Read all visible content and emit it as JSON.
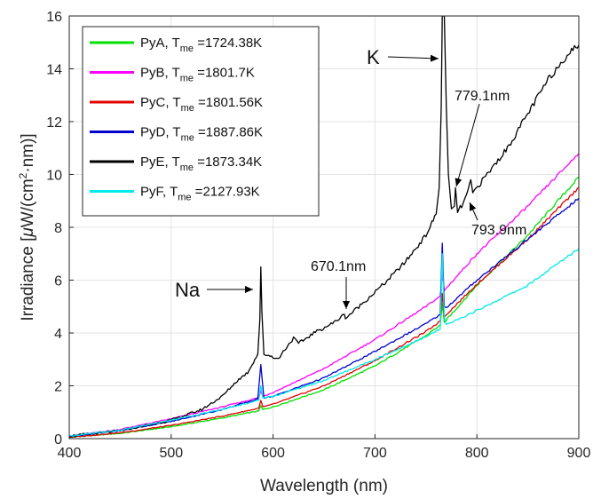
{
  "chart_data": {
    "type": "line",
    "xlabel": "Wavelength (nm)",
    "ylabel_parts": {
      "pre": "Irradiance [",
      "mu": "μ",
      "mid": "W/(cm",
      "sup": "2",
      "post": "·nm)]"
    },
    "xlim": [
      400,
      900
    ],
    "ylim": [
      0,
      16
    ],
    "xticks": [
      400,
      500,
      600,
      700,
      800,
      900
    ],
    "yticks": [
      0,
      2,
      4,
      6,
      8,
      10,
      12,
      14,
      16
    ],
    "grid": true,
    "legend_position": "top-left",
    "series": [
      {
        "name": "PyA",
        "label_prefix": "PyA, T",
        "label_sub": "me",
        "label_suffix": " =1724.38K",
        "color": "#00e000",
        "points": [
          [
            400,
            0.05
          ],
          [
            450,
            0.2
          ],
          [
            500,
            0.45
          ],
          [
            550,
            0.78
          ],
          [
            586,
            1.05
          ],
          [
            588,
            1.25
          ],
          [
            590,
            1.1
          ],
          [
            600,
            1.2
          ],
          [
            650,
            1.85
          ],
          [
            700,
            2.75
          ],
          [
            750,
            3.9
          ],
          [
            764,
            4.3
          ],
          [
            766,
            5.1
          ],
          [
            768,
            4.4
          ],
          [
            770,
            4.5
          ],
          [
            800,
            5.8
          ],
          [
            850,
            7.7
          ],
          [
            900,
            9.9
          ]
        ]
      },
      {
        "name": "PyB",
        "label_prefix": "PyB, T",
        "label_sub": "me",
        "label_suffix": " =1801.7K",
        "color": "#ff00ff",
        "points": [
          [
            400,
            0.1
          ],
          [
            450,
            0.35
          ],
          [
            500,
            0.75
          ],
          [
            550,
            1.2
          ],
          [
            586,
            1.55
          ],
          [
            588,
            1.8
          ],
          [
            590,
            1.6
          ],
          [
            600,
            1.75
          ],
          [
            650,
            2.65
          ],
          [
            700,
            3.75
          ],
          [
            750,
            5.0
          ],
          [
            764,
            5.4
          ],
          [
            766,
            6.2
          ],
          [
            768,
            5.6
          ],
          [
            770,
            5.7
          ],
          [
            800,
            7.0
          ],
          [
            850,
            8.8
          ],
          [
            900,
            10.8
          ]
        ]
      },
      {
        "name": "PyC",
        "label_prefix": "PyC, T",
        "label_sub": "me",
        "label_suffix": " =1801.56K",
        "color": "#e00000",
        "points": [
          [
            400,
            0.05
          ],
          [
            450,
            0.22
          ],
          [
            500,
            0.5
          ],
          [
            550,
            0.85
          ],
          [
            586,
            1.15
          ],
          [
            588,
            1.45
          ],
          [
            590,
            1.2
          ],
          [
            600,
            1.3
          ],
          [
            650,
            2.0
          ],
          [
            700,
            2.95
          ],
          [
            750,
            4.05
          ],
          [
            764,
            4.45
          ],
          [
            766,
            5.5
          ],
          [
            768,
            4.6
          ],
          [
            770,
            4.7
          ],
          [
            800,
            5.85
          ],
          [
            850,
            7.55
          ],
          [
            900,
            9.5
          ]
        ]
      },
      {
        "name": "PyD",
        "label_prefix": "PyD, T",
        "label_sub": "me",
        "label_suffix": " =1887.86K",
        "color": "#0000cc",
        "points": [
          [
            400,
            0.08
          ],
          [
            450,
            0.3
          ],
          [
            500,
            0.65
          ],
          [
            550,
            1.1
          ],
          [
            585,
            1.5
          ],
          [
            588,
            2.8
          ],
          [
            591,
            1.55
          ],
          [
            600,
            1.6
          ],
          [
            650,
            2.3
          ],
          [
            700,
            3.3
          ],
          [
            750,
            4.35
          ],
          [
            764,
            4.7
          ],
          [
            766,
            7.4
          ],
          [
            768,
            5.0
          ],
          [
            770,
            4.95
          ],
          [
            800,
            6.0
          ],
          [
            850,
            7.55
          ],
          [
            900,
            9.1
          ]
        ]
      },
      {
        "name": "PyE",
        "label_prefix": "PyE, T",
        "label_sub": "me",
        "label_suffix": " =1873.34K",
        "color": "#000000",
        "points": [
          [
            400,
            0.1
          ],
          [
            450,
            0.3
          ],
          [
            500,
            0.7
          ],
          [
            530,
            1.1
          ],
          [
            550,
            1.6
          ],
          [
            565,
            2.2
          ],
          [
            575,
            2.5
          ],
          [
            585,
            3.2
          ],
          [
            587,
            4.5
          ],
          [
            588,
            6.5
          ],
          [
            589,
            4.8
          ],
          [
            591,
            3.2
          ],
          [
            600,
            3.1
          ],
          [
            605,
            3.0
          ],
          [
            610,
            3.3
          ],
          [
            620,
            3.8
          ],
          [
            625,
            3.6
          ],
          [
            640,
            4.0
          ],
          [
            660,
            4.4
          ],
          [
            670,
            4.7
          ],
          [
            671,
            4.55
          ],
          [
            690,
            5.2
          ],
          [
            710,
            5.9
          ],
          [
            730,
            6.7
          ],
          [
            750,
            7.7
          ],
          [
            760,
            8.5
          ],
          [
            763,
            9.5
          ],
          [
            765,
            12.5
          ],
          [
            766,
            16
          ],
          [
            768,
            16
          ],
          [
            770,
            12.5
          ],
          [
            772,
            10.0
          ],
          [
            775,
            8.7
          ],
          [
            778,
            8.8
          ],
          [
            779,
            9.5
          ],
          [
            781,
            8.6
          ],
          [
            785,
            8.8
          ],
          [
            790,
            9.2
          ],
          [
            794,
            9.8
          ],
          [
            796,
            9.3
          ],
          [
            810,
            10.0
          ],
          [
            830,
            11.0
          ],
          [
            850,
            12.3
          ],
          [
            870,
            13.6
          ],
          [
            890,
            14.6
          ],
          [
            900,
            14.9
          ]
        ]
      },
      {
        "name": "PyF",
        "label_prefix": "PyF, T",
        "label_sub": "me",
        "label_suffix": " =2127.93K",
        "color": "#00eaea",
        "points": [
          [
            400,
            0.1
          ],
          [
            450,
            0.32
          ],
          [
            500,
            0.7
          ],
          [
            550,
            1.1
          ],
          [
            586,
            1.45
          ],
          [
            588,
            2.0
          ],
          [
            590,
            1.55
          ],
          [
            600,
            1.6
          ],
          [
            650,
            2.2
          ],
          [
            700,
            3.0
          ],
          [
            750,
            3.85
          ],
          [
            764,
            4.15
          ],
          [
            766,
            7.0
          ],
          [
            768,
            4.6
          ],
          [
            770,
            4.3
          ],
          [
            800,
            4.85
          ],
          [
            850,
            5.8
          ],
          [
            900,
            7.2
          ]
        ]
      }
    ],
    "annotations": [
      {
        "text": "Na",
        "size": "big"
      },
      {
        "text": "K",
        "size": "big"
      },
      {
        "text": "670.1nm",
        "size": "normal"
      },
      {
        "text": "779.1nm",
        "size": "normal"
      },
      {
        "text": "793.9nm",
        "size": "normal"
      }
    ]
  }
}
